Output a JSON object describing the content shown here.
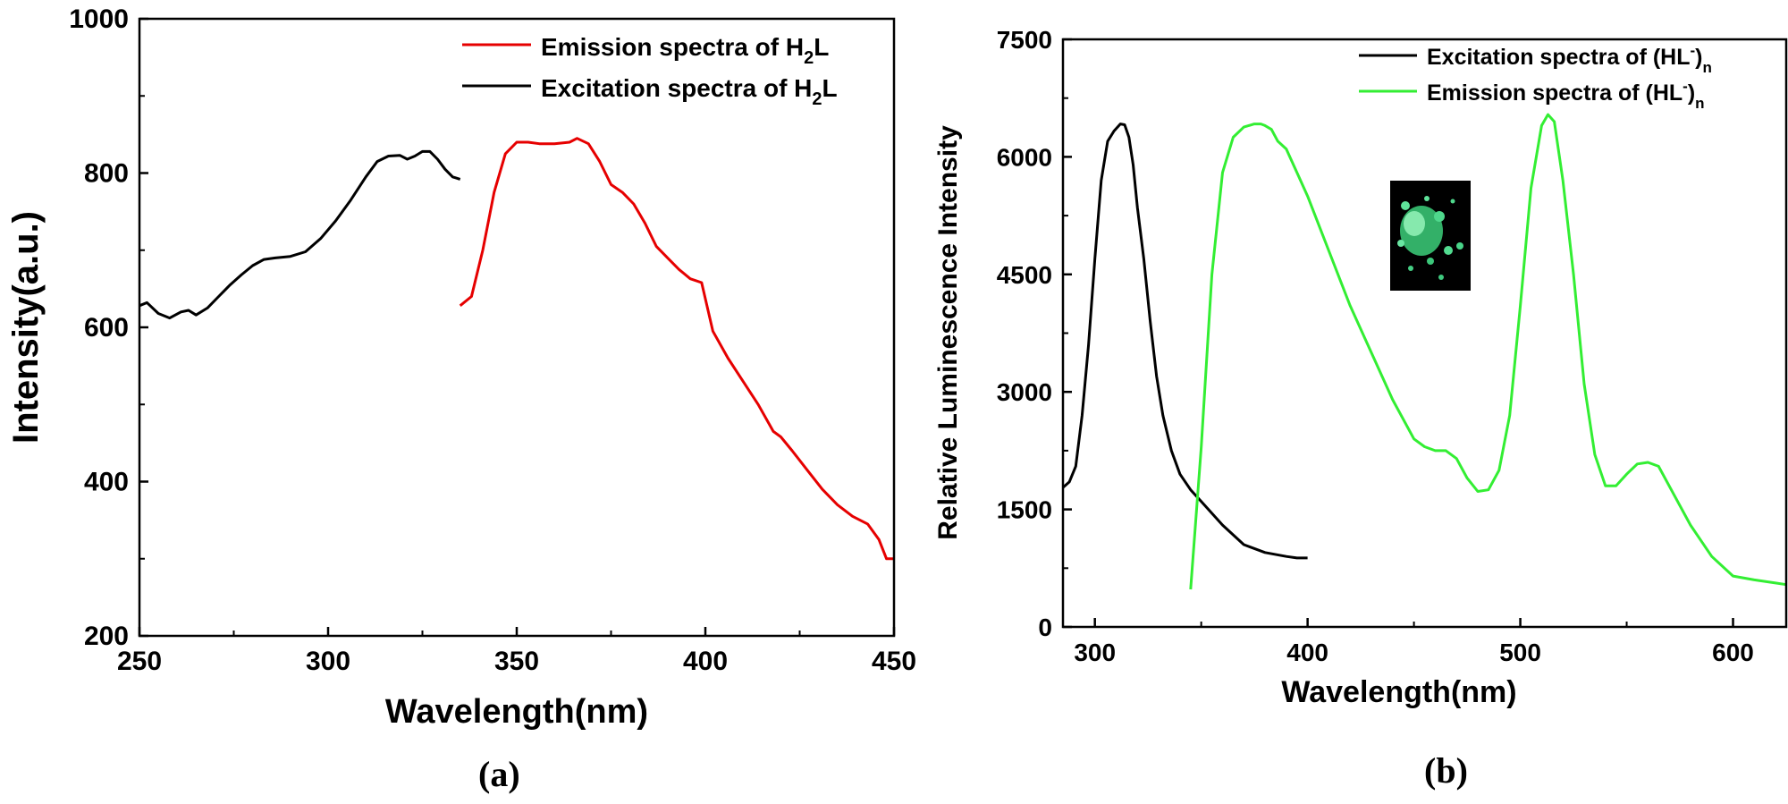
{
  "captions": {
    "a": "(a)",
    "b": "(b)"
  },
  "chart_data": [
    {
      "type": "line",
      "panel": "(a)",
      "xlabel": "Wavelength(nm)",
      "ylabel": "Intensity(a.u.)",
      "xlim": [
        250,
        450
      ],
      "ylim": [
        200,
        1000
      ],
      "xticks": [
        250,
        300,
        350,
        400,
        450
      ],
      "yticks": [
        200,
        400,
        600,
        800,
        1000
      ],
      "legend_position": "top-right",
      "series": [
        {
          "name": "Emission spectra of  H2L",
          "label_main": "Emission spectra of  H",
          "label_sub": "2",
          "label_tail": "L",
          "color": "#e60000",
          "x": [
            335,
            338,
            341,
            344,
            347,
            350,
            353,
            356,
            360,
            364,
            366,
            369,
            372,
            375,
            378,
            381,
            384,
            387,
            390,
            393,
            396,
            399,
            402,
            406,
            410,
            414,
            418,
            420,
            423,
            427,
            431,
            435,
            439,
            443,
            446,
            448,
            450
          ],
          "y": [
            628,
            640,
            700,
            775,
            825,
            840,
            840,
            838,
            838,
            840,
            845,
            838,
            815,
            785,
            775,
            760,
            735,
            705,
            690,
            675,
            663,
            658,
            595,
            560,
            530,
            500,
            465,
            458,
            440,
            415,
            390,
            370,
            355,
            345,
            325,
            300,
            300
          ]
        },
        {
          "name": "Excitation spectra of H2L",
          "label_main": "Excitation spectra of H",
          "label_sub": "2",
          "label_tail": "L",
          "color": "#000000",
          "x": [
            250,
            252,
            255,
            258,
            261,
            263,
            265,
            268,
            271,
            274,
            277,
            280,
            283,
            286,
            290,
            294,
            298,
            302,
            306,
            310,
            313,
            316,
            319,
            321,
            323,
            325,
            327,
            329,
            331,
            333,
            335
          ],
          "y": [
            628,
            632,
            618,
            612,
            620,
            622,
            616,
            625,
            640,
            655,
            668,
            680,
            688,
            690,
            692,
            698,
            715,
            738,
            765,
            795,
            815,
            822,
            823,
            818,
            822,
            828,
            828,
            818,
            805,
            795,
            792
          ]
        }
      ]
    },
    {
      "type": "line",
      "panel": "(b)",
      "xlabel": "Wavelength(nm)",
      "ylabel": "Relative Luminescence Intensity",
      "xlim": [
        285,
        625
      ],
      "ylim": [
        0,
        7500
      ],
      "xticks": [
        300,
        400,
        500,
        600
      ],
      "yticks": [
        0,
        1500,
        3000,
        4500,
        6000,
        7500
      ],
      "legend_position": "top-right",
      "inset": "green luminescent crystals photograph",
      "series": [
        {
          "name": "Excitation spectra of (HL-)n",
          "label_main": "Excitation spectra of (HL",
          "label_sup": "-",
          "label_mid": ")",
          "label_sub": "n",
          "color": "#000000",
          "x": [
            285,
            288,
            291,
            294,
            297,
            300,
            303,
            306,
            309,
            312,
            314,
            316,
            318,
            320,
            323,
            326,
            329,
            332,
            336,
            340,
            345,
            350,
            360,
            370,
            380,
            390,
            395,
            400
          ],
          "y": [
            1780,
            1850,
            2050,
            2700,
            3600,
            4700,
            5700,
            6200,
            6330,
            6420,
            6410,
            6250,
            5900,
            5350,
            4700,
            3900,
            3200,
            2700,
            2250,
            1950,
            1750,
            1600,
            1300,
            1050,
            950,
            900,
            880,
            880
          ]
        },
        {
          "name": "Emission spectra of (HL-)n",
          "label_main": "Emission spectra of (HL",
          "label_sup": "-",
          "label_mid": ")",
          "label_sub": "n",
          "color": "#33ee33",
          "x": [
            345,
            350,
            355,
            360,
            365,
            370,
            375,
            378,
            380,
            383,
            386,
            390,
            395,
            400,
            410,
            420,
            430,
            440,
            450,
            455,
            460,
            465,
            470,
            475,
            480,
            485,
            490,
            495,
            500,
            505,
            510,
            513,
            516,
            520,
            525,
            530,
            535,
            540,
            545,
            550,
            555,
            560,
            565,
            570,
            580,
            590,
            600,
            610,
            620,
            625
          ],
          "y": [
            480,
            2300,
            4500,
            5800,
            6250,
            6380,
            6420,
            6420,
            6400,
            6350,
            6200,
            6100,
            5800,
            5500,
            4800,
            4100,
            3500,
            2900,
            2400,
            2300,
            2250,
            2250,
            2150,
            1900,
            1730,
            1750,
            2000,
            2700,
            4100,
            5600,
            6400,
            6540,
            6450,
            5700,
            4500,
            3100,
            2200,
            1800,
            1800,
            1950,
            2080,
            2100,
            2050,
            1800,
            1300,
            900,
            650,
            600,
            560,
            540
          ]
        }
      ]
    }
  ]
}
